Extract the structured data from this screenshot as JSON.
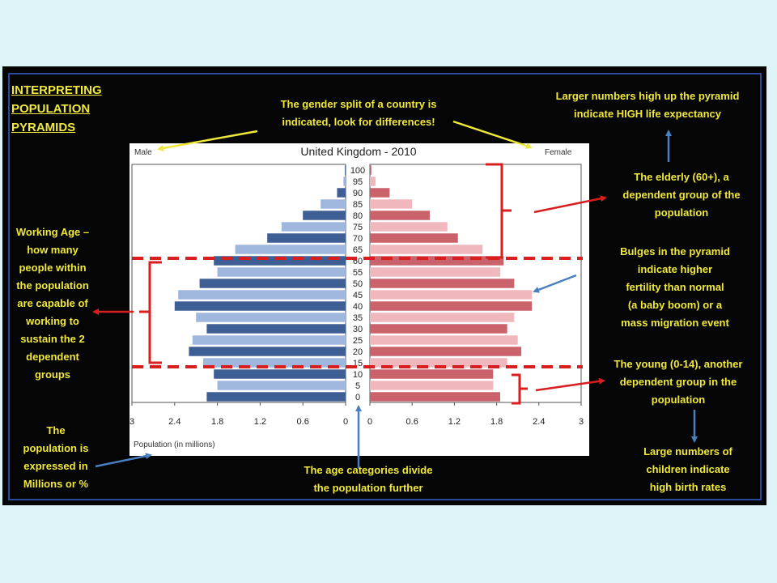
{
  "title": "INTERPRETING\nPOPULATION\nPYRAMIDS",
  "annotations": {
    "gender": "The gender split of a country is\nindicated, look for differences!",
    "life_expectancy": "Larger numbers high up the pyramid\nindicate HIGH life expectancy",
    "elderly": "The elderly (60+), a\ndependent group of the\npopulation",
    "bulges": "Bulges in the pyramid\nindicate higher\nfertility than normal\n(a baby boom) or a\nmass migration event",
    "young": "The young (0-14), another\ndependent group in the\npopulation",
    "birth_rates": "Large numbers of\nchildren indicate\nhigh birth rates",
    "working_age": "Working Age –\nhow many\npeople within\nthe population\nare capable of\nworking to\nsustain the 2\ndependent\ngroups",
    "population_units": "The\npopulation is\nexpressed in\nMillions or %",
    "age_categories": "The age categories divide\nthe population further"
  },
  "colors": {
    "background": "#dff4f6",
    "panel": "#050505",
    "annotation_text": "#f0e93a",
    "male_dark": "#3d5f94",
    "male_light": "#9fb7dd",
    "female_dark": "#c9626b",
    "female_light": "#f0b7bc",
    "dashed_line": "#d81e1e"
  },
  "chart_data": {
    "type": "bar",
    "orientation": "horizontal-pyramid",
    "title": "United Kingdom - 2010",
    "left_label": "Male",
    "right_label": "Female",
    "xlabel": "Population (in millions)",
    "xlim": [
      0,
      3
    ],
    "x_ticks": [
      "3",
      "2.4",
      "1.8",
      "1.2",
      "0.6",
      "0"
    ],
    "x_ticks_right": [
      "0",
      "0.6",
      "1.2",
      "1.8",
      "2.4",
      "3"
    ],
    "categories": [
      "0",
      "5",
      "10",
      "15",
      "20",
      "25",
      "30",
      "35",
      "40",
      "45",
      "50",
      "55",
      "60",
      "65",
      "70",
      "75",
      "80",
      "85",
      "90",
      "95",
      "100"
    ],
    "series": [
      {
        "name": "Male",
        "values": [
          1.95,
          1.8,
          1.85,
          2.0,
          2.2,
          2.15,
          1.95,
          2.1,
          2.4,
          2.35,
          2.05,
          1.8,
          1.85,
          1.55,
          1.1,
          0.9,
          0.6,
          0.35,
          0.12,
          0.03,
          0.01
        ]
      },
      {
        "name": "Female",
        "values": [
          1.85,
          1.75,
          1.75,
          1.95,
          2.15,
          2.1,
          1.95,
          2.05,
          2.3,
          2.3,
          2.05,
          1.85,
          1.9,
          1.6,
          1.25,
          1.1,
          0.85,
          0.6,
          0.28,
          0.08,
          0.02
        ]
      }
    ],
    "grid": false,
    "legend": "none"
  }
}
